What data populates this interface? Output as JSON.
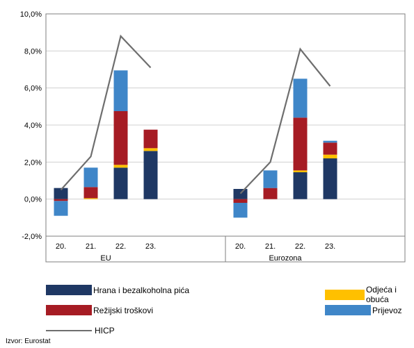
{
  "chart_data": {
    "type": "bar",
    "stacked": true,
    "groups": [
      "EU",
      "Eurozona"
    ],
    "categories": [
      "20.",
      "21.",
      "22.",
      "23."
    ],
    "ylim": [
      -2,
      10
    ],
    "yticks": [
      "-2,0%",
      "0,0%",
      "2,0%",
      "4,0%",
      "6,0%",
      "8,0%",
      "10,0%"
    ],
    "ytick_values": [
      -2,
      0,
      2,
      4,
      6,
      8,
      10
    ],
    "grid": true,
    "series": [
      {
        "name": "Hrana i bezalkoholna pića",
        "color": "#1f3864",
        "values": {
          "EU": [
            0.6,
            0.0,
            1.7,
            2.6
          ],
          "Eurozona": [
            0.55,
            0.0,
            1.45,
            2.2
          ]
        }
      },
      {
        "name": "Odjeća i obuća",
        "color": "#ffc000",
        "values": {
          "EU": [
            0.0,
            0.05,
            0.15,
            0.15
          ],
          "Eurozona": [
            0.0,
            0.0,
            0.1,
            0.2
          ]
        }
      },
      {
        "name": "Režijski troškovi",
        "color": "#a61c24",
        "values": {
          "EU": [
            -0.1,
            0.6,
            2.9,
            1.0
          ],
          "Eurozona": [
            -0.2,
            0.6,
            2.85,
            0.65
          ]
        }
      },
      {
        "name": "Prijevoz",
        "color": "#3f86c8",
        "values": {
          "EU": [
            -0.8,
            1.05,
            2.2,
            0.0
          ],
          "Eurozona": [
            -0.8,
            0.95,
            2.1,
            0.1
          ]
        }
      }
    ],
    "line": {
      "name": "HICP",
      "color": "#6e6e6e",
      "values": {
        "EU": [
          0.5,
          2.3,
          8.8,
          7.1
        ],
        "Eurozona": [
          0.3,
          2.0,
          8.1,
          6.1
        ]
      }
    },
    "legend": [
      {
        "label": "Hrana i bezalkoholna pića",
        "color": "#1f3864",
        "kind": "bar"
      },
      {
        "label": "Odjeća i obuća",
        "color": "#ffc000",
        "kind": "bar"
      },
      {
        "label": "Režijski troškovi",
        "color": "#a61c24",
        "kind": "bar"
      },
      {
        "label": "Prijevoz",
        "color": "#3f86c8",
        "kind": "bar"
      },
      {
        "label": "HICP",
        "color": "#6e6e6e",
        "kind": "line"
      }
    ],
    "legend_placement": "bottom"
  },
  "source": "Izvor: Eurostat"
}
